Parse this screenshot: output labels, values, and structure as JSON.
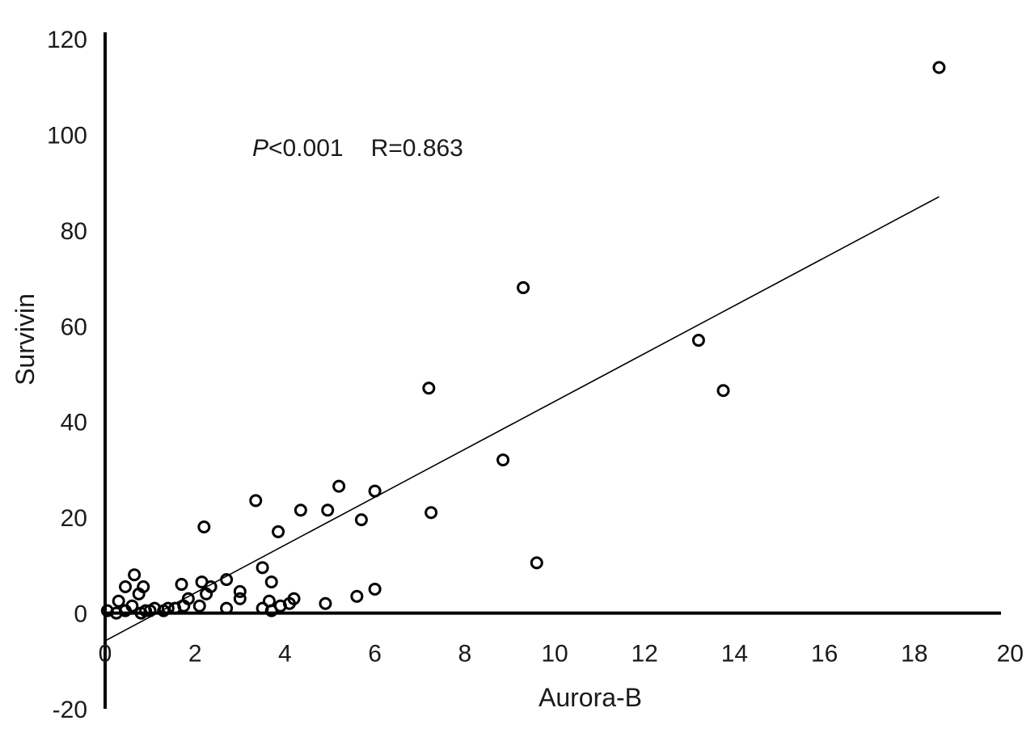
{
  "chart_data": {
    "type": "scatter",
    "title": "",
    "xlabel": "Aurora-B",
    "ylabel": "Survivin",
    "xlim": [
      0,
      20
    ],
    "ylim": [
      -20,
      120
    ],
    "x_ticks": [
      "0",
      "2",
      "4",
      "6",
      "8",
      "10",
      "12",
      "14",
      "16",
      "18",
      "20"
    ],
    "y_ticks": [
      "120",
      "100",
      "80",
      "60",
      "40",
      "20",
      "0",
      "-20"
    ],
    "grid": false,
    "legend": "none",
    "annotation": {
      "p_label": "P",
      "p_value": "<0.001",
      "r_text": "R=0.863"
    },
    "points": [
      {
        "x": 18.55,
        "y": 114.0
      },
      {
        "x": 9.3,
        "y": 68.0
      },
      {
        "x": 13.2,
        "y": 57.0
      },
      {
        "x": 13.75,
        "y": 46.5
      },
      {
        "x": 7.2,
        "y": 47.0
      },
      {
        "x": 8.85,
        "y": 32.0
      },
      {
        "x": 7.25,
        "y": 21.0
      },
      {
        "x": 9.6,
        "y": 10.5
      },
      {
        "x": 5.2,
        "y": 26.5
      },
      {
        "x": 6.0,
        "y": 25.5
      },
      {
        "x": 5.7,
        "y": 19.5
      },
      {
        "x": 4.35,
        "y": 21.5
      },
      {
        "x": 4.95,
        "y": 21.5
      },
      {
        "x": 3.35,
        "y": 23.5
      },
      {
        "x": 3.85,
        "y": 17.0
      },
      {
        "x": 2.2,
        "y": 18.0
      },
      {
        "x": 3.5,
        "y": 9.5
      },
      {
        "x": 3.7,
        "y": 6.5
      },
      {
        "x": 2.7,
        "y": 7.0
      },
      {
        "x": 2.35,
        "y": 5.5
      },
      {
        "x": 2.15,
        "y": 6.5
      },
      {
        "x": 1.7,
        "y": 6.0
      },
      {
        "x": 2.25,
        "y": 4.0
      },
      {
        "x": 1.85,
        "y": 3.0
      },
      {
        "x": 3.0,
        "y": 4.5
      },
      {
        "x": 3.0,
        "y": 3.0
      },
      {
        "x": 5.6,
        "y": 3.5
      },
      {
        "x": 6.0,
        "y": 5.0
      },
      {
        "x": 4.9,
        "y": 2.0
      },
      {
        "x": 4.2,
        "y": 3.0
      },
      {
        "x": 4.1,
        "y": 2.0
      },
      {
        "x": 3.9,
        "y": 1.5
      },
      {
        "x": 3.65,
        "y": 2.5
      },
      {
        "x": 3.5,
        "y": 1.0
      },
      {
        "x": 3.7,
        "y": 0.5
      },
      {
        "x": 2.7,
        "y": 1.0
      },
      {
        "x": 2.1,
        "y": 1.5
      },
      {
        "x": 1.75,
        "y": 1.5
      },
      {
        "x": 1.55,
        "y": 1.0
      },
      {
        "x": 1.4,
        "y": 1.0
      },
      {
        "x": 1.3,
        "y": 0.5
      },
      {
        "x": 1.1,
        "y": 1.0
      },
      {
        "x": 1.0,
        "y": 0.5
      },
      {
        "x": 0.9,
        "y": 0.5
      },
      {
        "x": 0.85,
        "y": 5.5
      },
      {
        "x": 0.75,
        "y": 4.0
      },
      {
        "x": 0.65,
        "y": 8.0
      },
      {
        "x": 0.6,
        "y": 1.5
      },
      {
        "x": 0.45,
        "y": 5.5
      },
      {
        "x": 0.45,
        "y": 0.5
      },
      {
        "x": 0.3,
        "y": 2.5
      },
      {
        "x": 0.25,
        "y": 0.0
      },
      {
        "x": 0.05,
        "y": 0.5
      },
      {
        "x": 0.8,
        "y": 0.0
      }
    ],
    "trendline": {
      "x": [
        0,
        18.55
      ],
      "y": [
        -5.8,
        87.0
      ]
    }
  }
}
